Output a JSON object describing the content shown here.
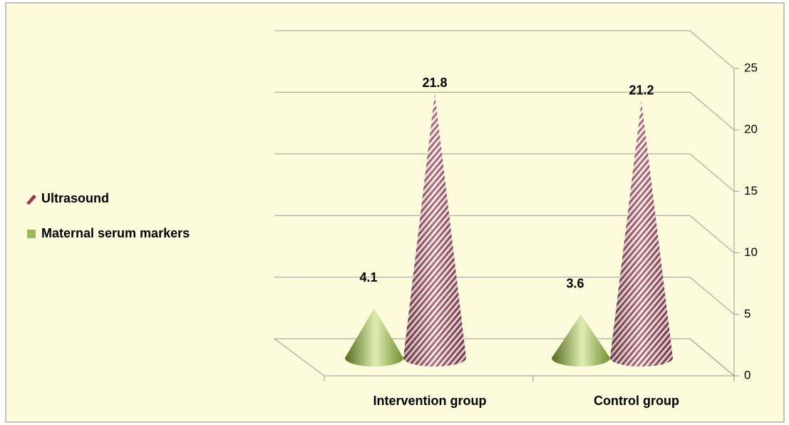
{
  "chart_data": {
    "type": "cone3d",
    "categories": [
      "Intervention group",
      "Control group"
    ],
    "series": [
      {
        "name": "Maternal serum markers",
        "color": "#9bbb59",
        "values": [
          4.1,
          3.6
        ]
      },
      {
        "name": "Ultrasound",
        "color": "#943c4d",
        "values": [
          21.8,
          21.2
        ]
      }
    ],
    "ylim": [
      0,
      25
    ],
    "yticks": [
      0,
      5,
      10,
      15,
      20,
      25
    ],
    "grid": true,
    "legend": "left"
  }
}
